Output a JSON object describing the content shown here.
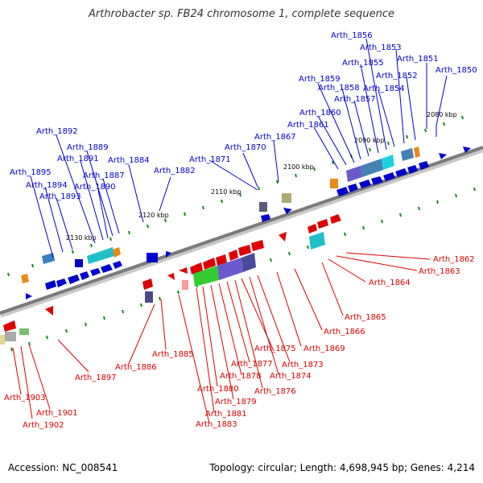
{
  "title": "Arthrobacter sp. FB24 chromosome 1, complete sequence",
  "footer": {
    "accession": "Accession: NC_008541",
    "summary": "Topology: circular; Length: 4,698,945 bp; Genes: 4,214"
  },
  "colors": {
    "forward": "#0000cc",
    "reverse": "#dd0000",
    "backbone": "#888888",
    "tick": "#1a8a1a"
  },
  "ticks": [
    "2080 kbp",
    "2090 kbp",
    "2100 kbp",
    "2110 kbp",
    "2120 kbp",
    "2130 kbp"
  ],
  "forward_genes": [
    "Arth_1850",
    "Arth_1851",
    "Arth_1852",
    "Arth_1853",
    "Arth_1854",
    "Arth_1855",
    "Arth_1856",
    "Arth_1857",
    "Arth_1858",
    "Arth_1859",
    "Arth_1860",
    "Arth_1861",
    "Arth_1867",
    "Arth_1870",
    "Arth_1871",
    "Arth_1882",
    "Arth_1884",
    "Arth_1887",
    "Arth_1889",
    "Arth_1890",
    "Arth_1891",
    "Arth_1892",
    "Arth_1893",
    "Arth_1894",
    "Arth_1895"
  ],
  "reverse_genes": [
    "Arth_1862",
    "Arth_1863",
    "Arth_1864",
    "Arth_1865",
    "Arth_1866",
    "Arth_1869",
    "Arth_1873",
    "Arth_1874",
    "Arth_1875",
    "Arth_1876",
    "Arth_1877",
    "Arth_1878",
    "Arth_1879",
    "Arth_1880",
    "Arth_1881",
    "Arth_1883",
    "Arth_1885",
    "Arth_1886",
    "Arth_1897",
    "Arth_1901",
    "Arth_1902",
    "Arth_1903"
  ]
}
